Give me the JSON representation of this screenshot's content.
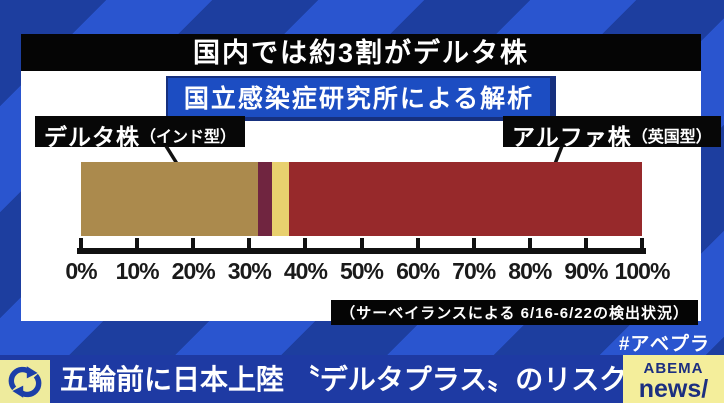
{
  "header": {
    "title": "国内では約3割がデルタ株",
    "subtitle": "国立感染症研究所による解析"
  },
  "chart_data": {
    "type": "bar",
    "orientation": "horizontal-stacked",
    "title": "国内では約3割がデルタ株",
    "subtitle": "国立感染症研究所による解析",
    "note": "（サーベイランスによる 6/16-6/22の検出状況）",
    "xlim": [
      0,
      100
    ],
    "unit": "%",
    "tick_labels": [
      "0%",
      "10%",
      "20%",
      "30%",
      "40%",
      "50%",
      "60%",
      "70%",
      "80%",
      "90%",
      "100%"
    ],
    "grid": false,
    "segments": [
      {
        "label": "デルタ株（インド型）",
        "value": 31.5,
        "color": "#ab8a4d"
      },
      {
        "label": "",
        "value": 2.5,
        "color": "#702540"
      },
      {
        "label": "",
        "value": 3.0,
        "color": "#e8d06e"
      },
      {
        "label": "アルファ株（英国型）",
        "value": 63.0,
        "color": "#97292b"
      }
    ],
    "callouts": [
      {
        "main": "デルタ株",
        "sub": "（インド型）"
      },
      {
        "main": "アルファ株",
        "sub": "（英国型）"
      }
    ]
  },
  "footer": {
    "hashtag": "#アベプラ",
    "headline": "五輪前に日本上陸 〝デルタプラス〟のリスクは",
    "logo_line1": "ABEMA",
    "logo_line2": "news/"
  },
  "colors": {
    "stripe_dark": "#1d3e9f",
    "stripe_light": "#2a55cf",
    "subtitle_box": "#1c4dc2",
    "banner_bg": "#050505",
    "delta_gold": "#ab8a4d",
    "stripe_maroon": "#702540",
    "stripe_yellow": "#e8d06e",
    "alpha_red": "#97292b",
    "lower_bar": "#1e3aa3",
    "logo_bg": "#f4ee9b",
    "logo_text": "#1c2f80"
  }
}
